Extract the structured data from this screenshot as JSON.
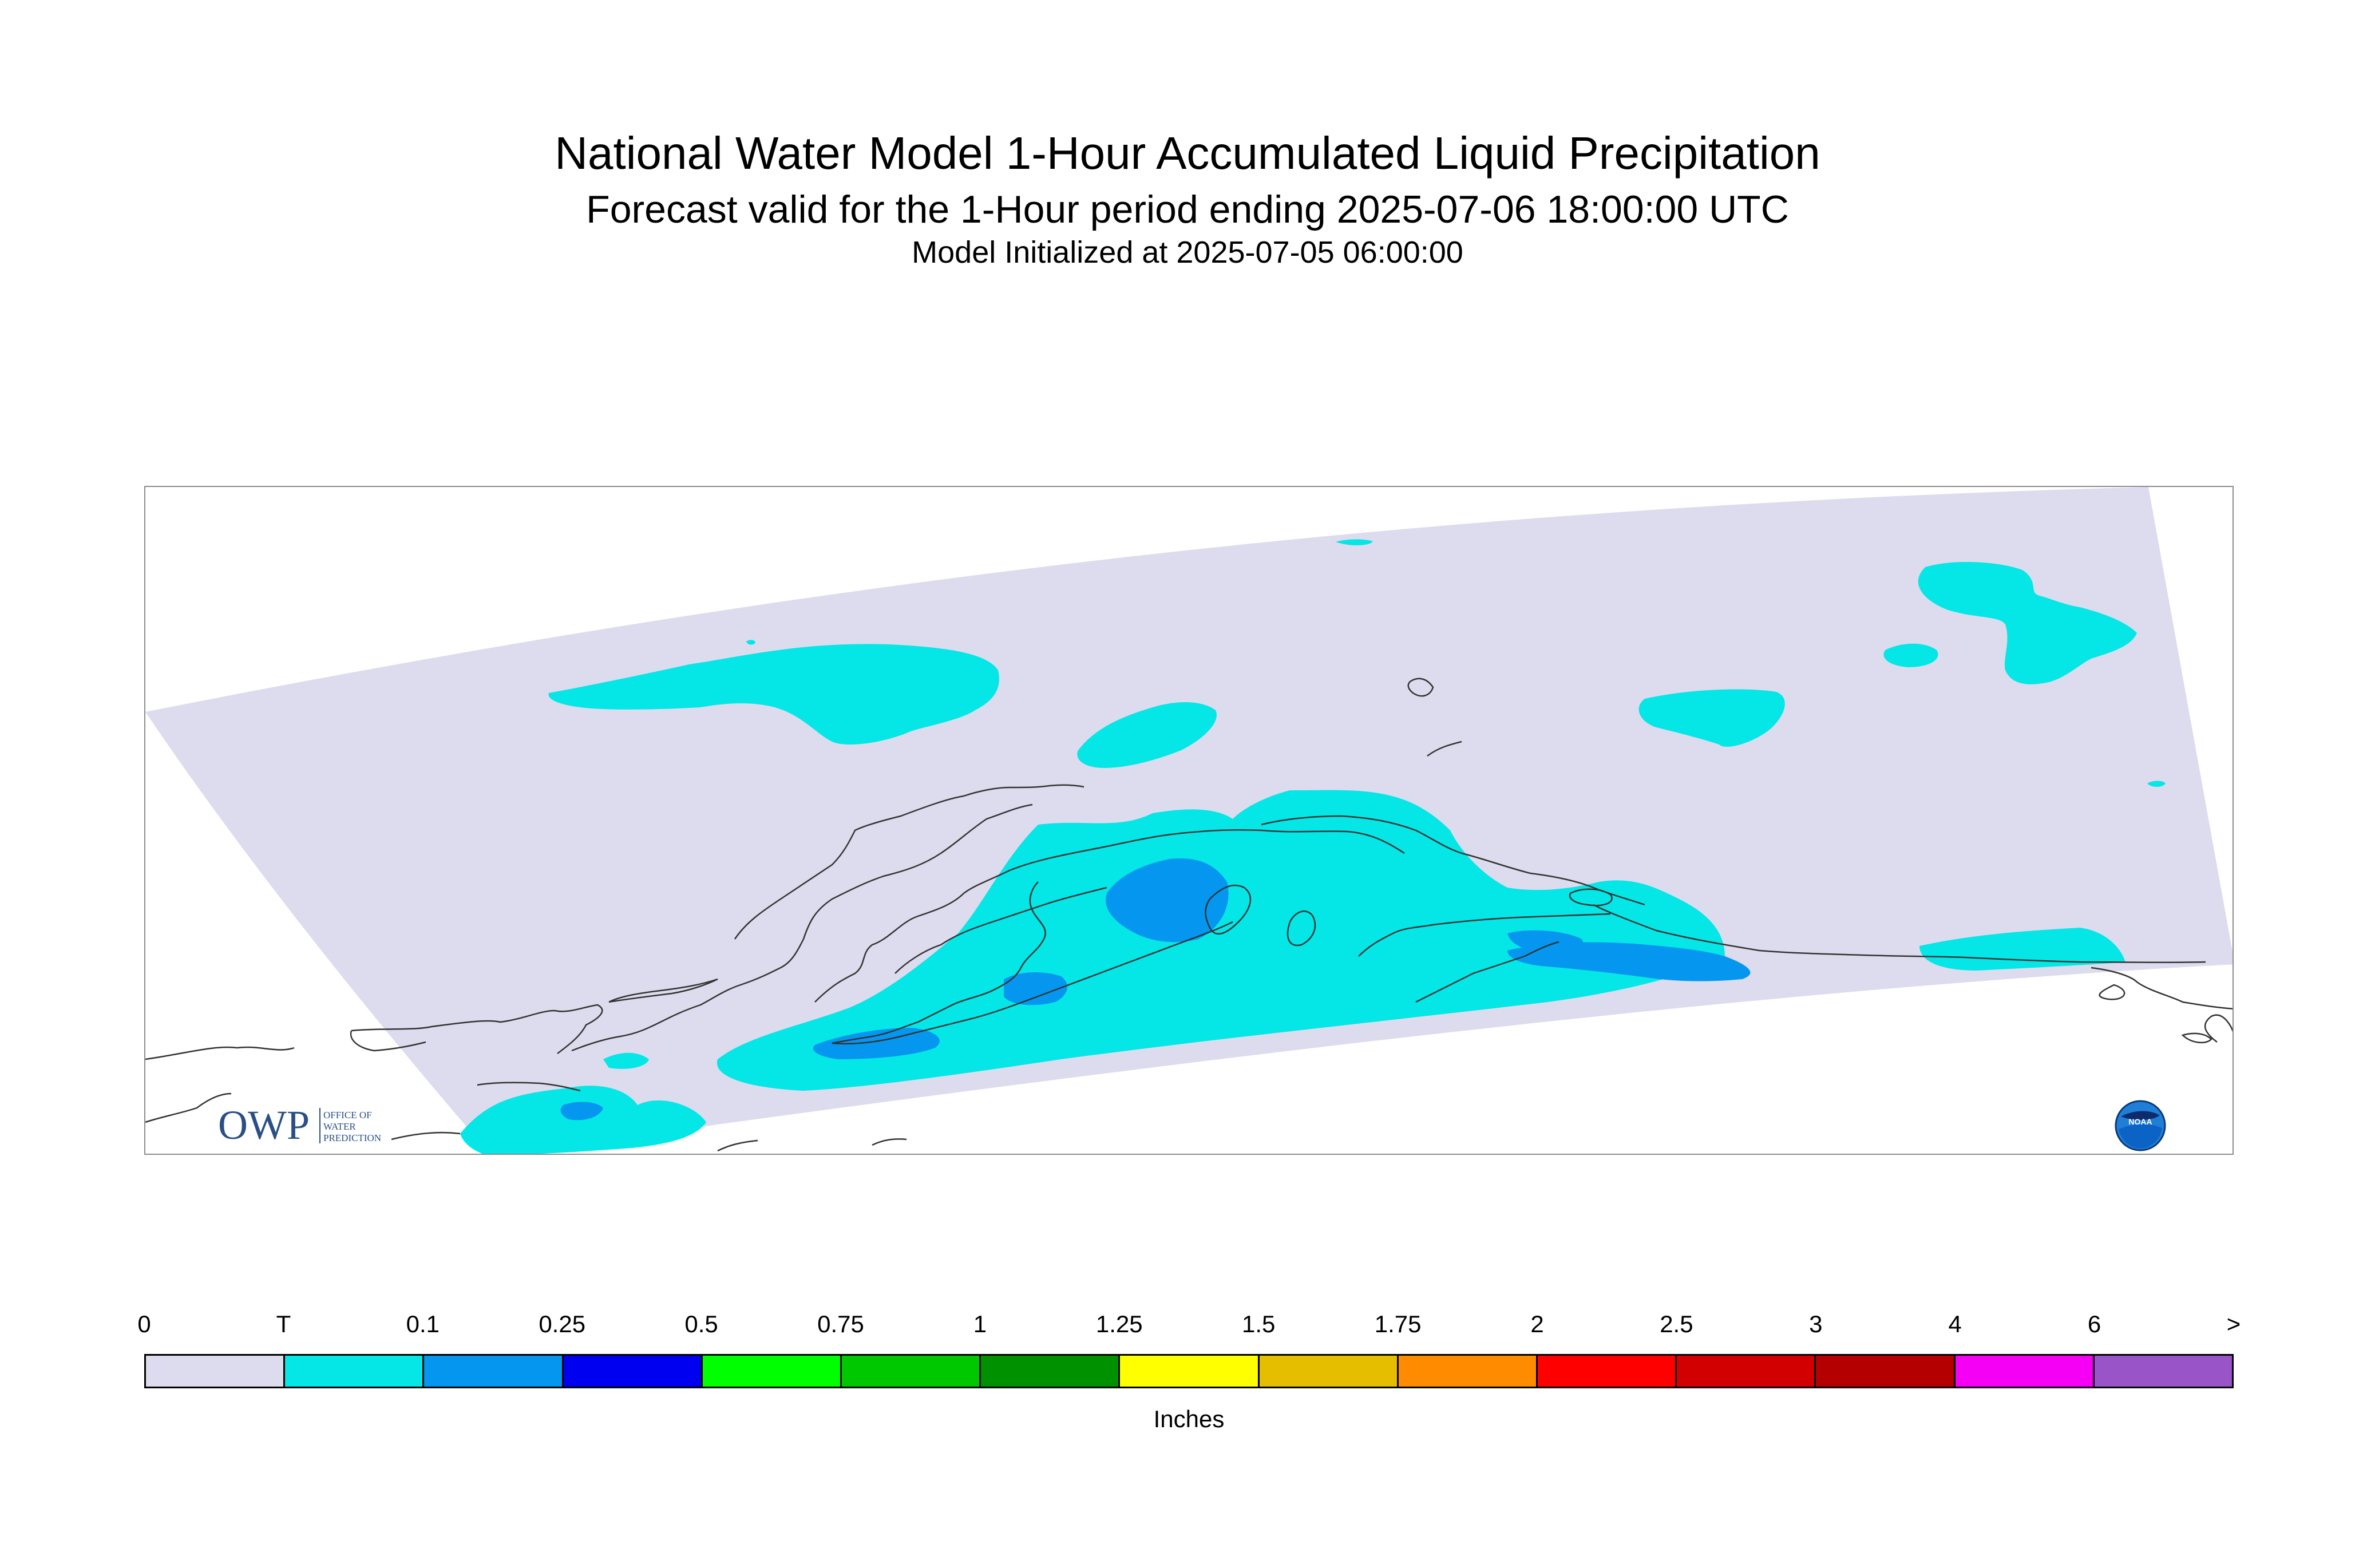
{
  "header": {
    "title": "National Water Model 1-Hour Accumulated Liquid Precipitation",
    "subtitle": "Forecast valid for the 1-Hour period ending 2025-07-06 18:00:00 UTC",
    "init": "Model Initialized at 2025-07-05 06:00:00"
  },
  "logos": {
    "owp_letters": "OWP",
    "owp_text": "OFFICE OF WATER PREDICTION",
    "noaa_text": "NOAA"
  },
  "legend": {
    "labels": [
      "0",
      "T",
      "0.1",
      "0.25",
      "0.5",
      "0.75",
      "1",
      "1.25",
      "1.5",
      "1.75",
      "2",
      "2.5",
      "3",
      "4",
      "6",
      ">"
    ],
    "colors": [
      "#dcdcee",
      "#05e6e6",
      "#0596f0",
      "#0000f0",
      "#00ff00",
      "#00c800",
      "#009100",
      "#ffff00",
      "#e6be00",
      "#ff8c00",
      "#ff0000",
      "#d20000",
      "#b40000",
      "#f500f5",
      "#9955c8"
    ],
    "units": "Inches"
  },
  "map_colors": {
    "domain": "#dcdcee",
    "trace": "#05e6e6",
    "light": "#0596f0",
    "coast": "#333333",
    "frame": "#8c8c8c"
  }
}
